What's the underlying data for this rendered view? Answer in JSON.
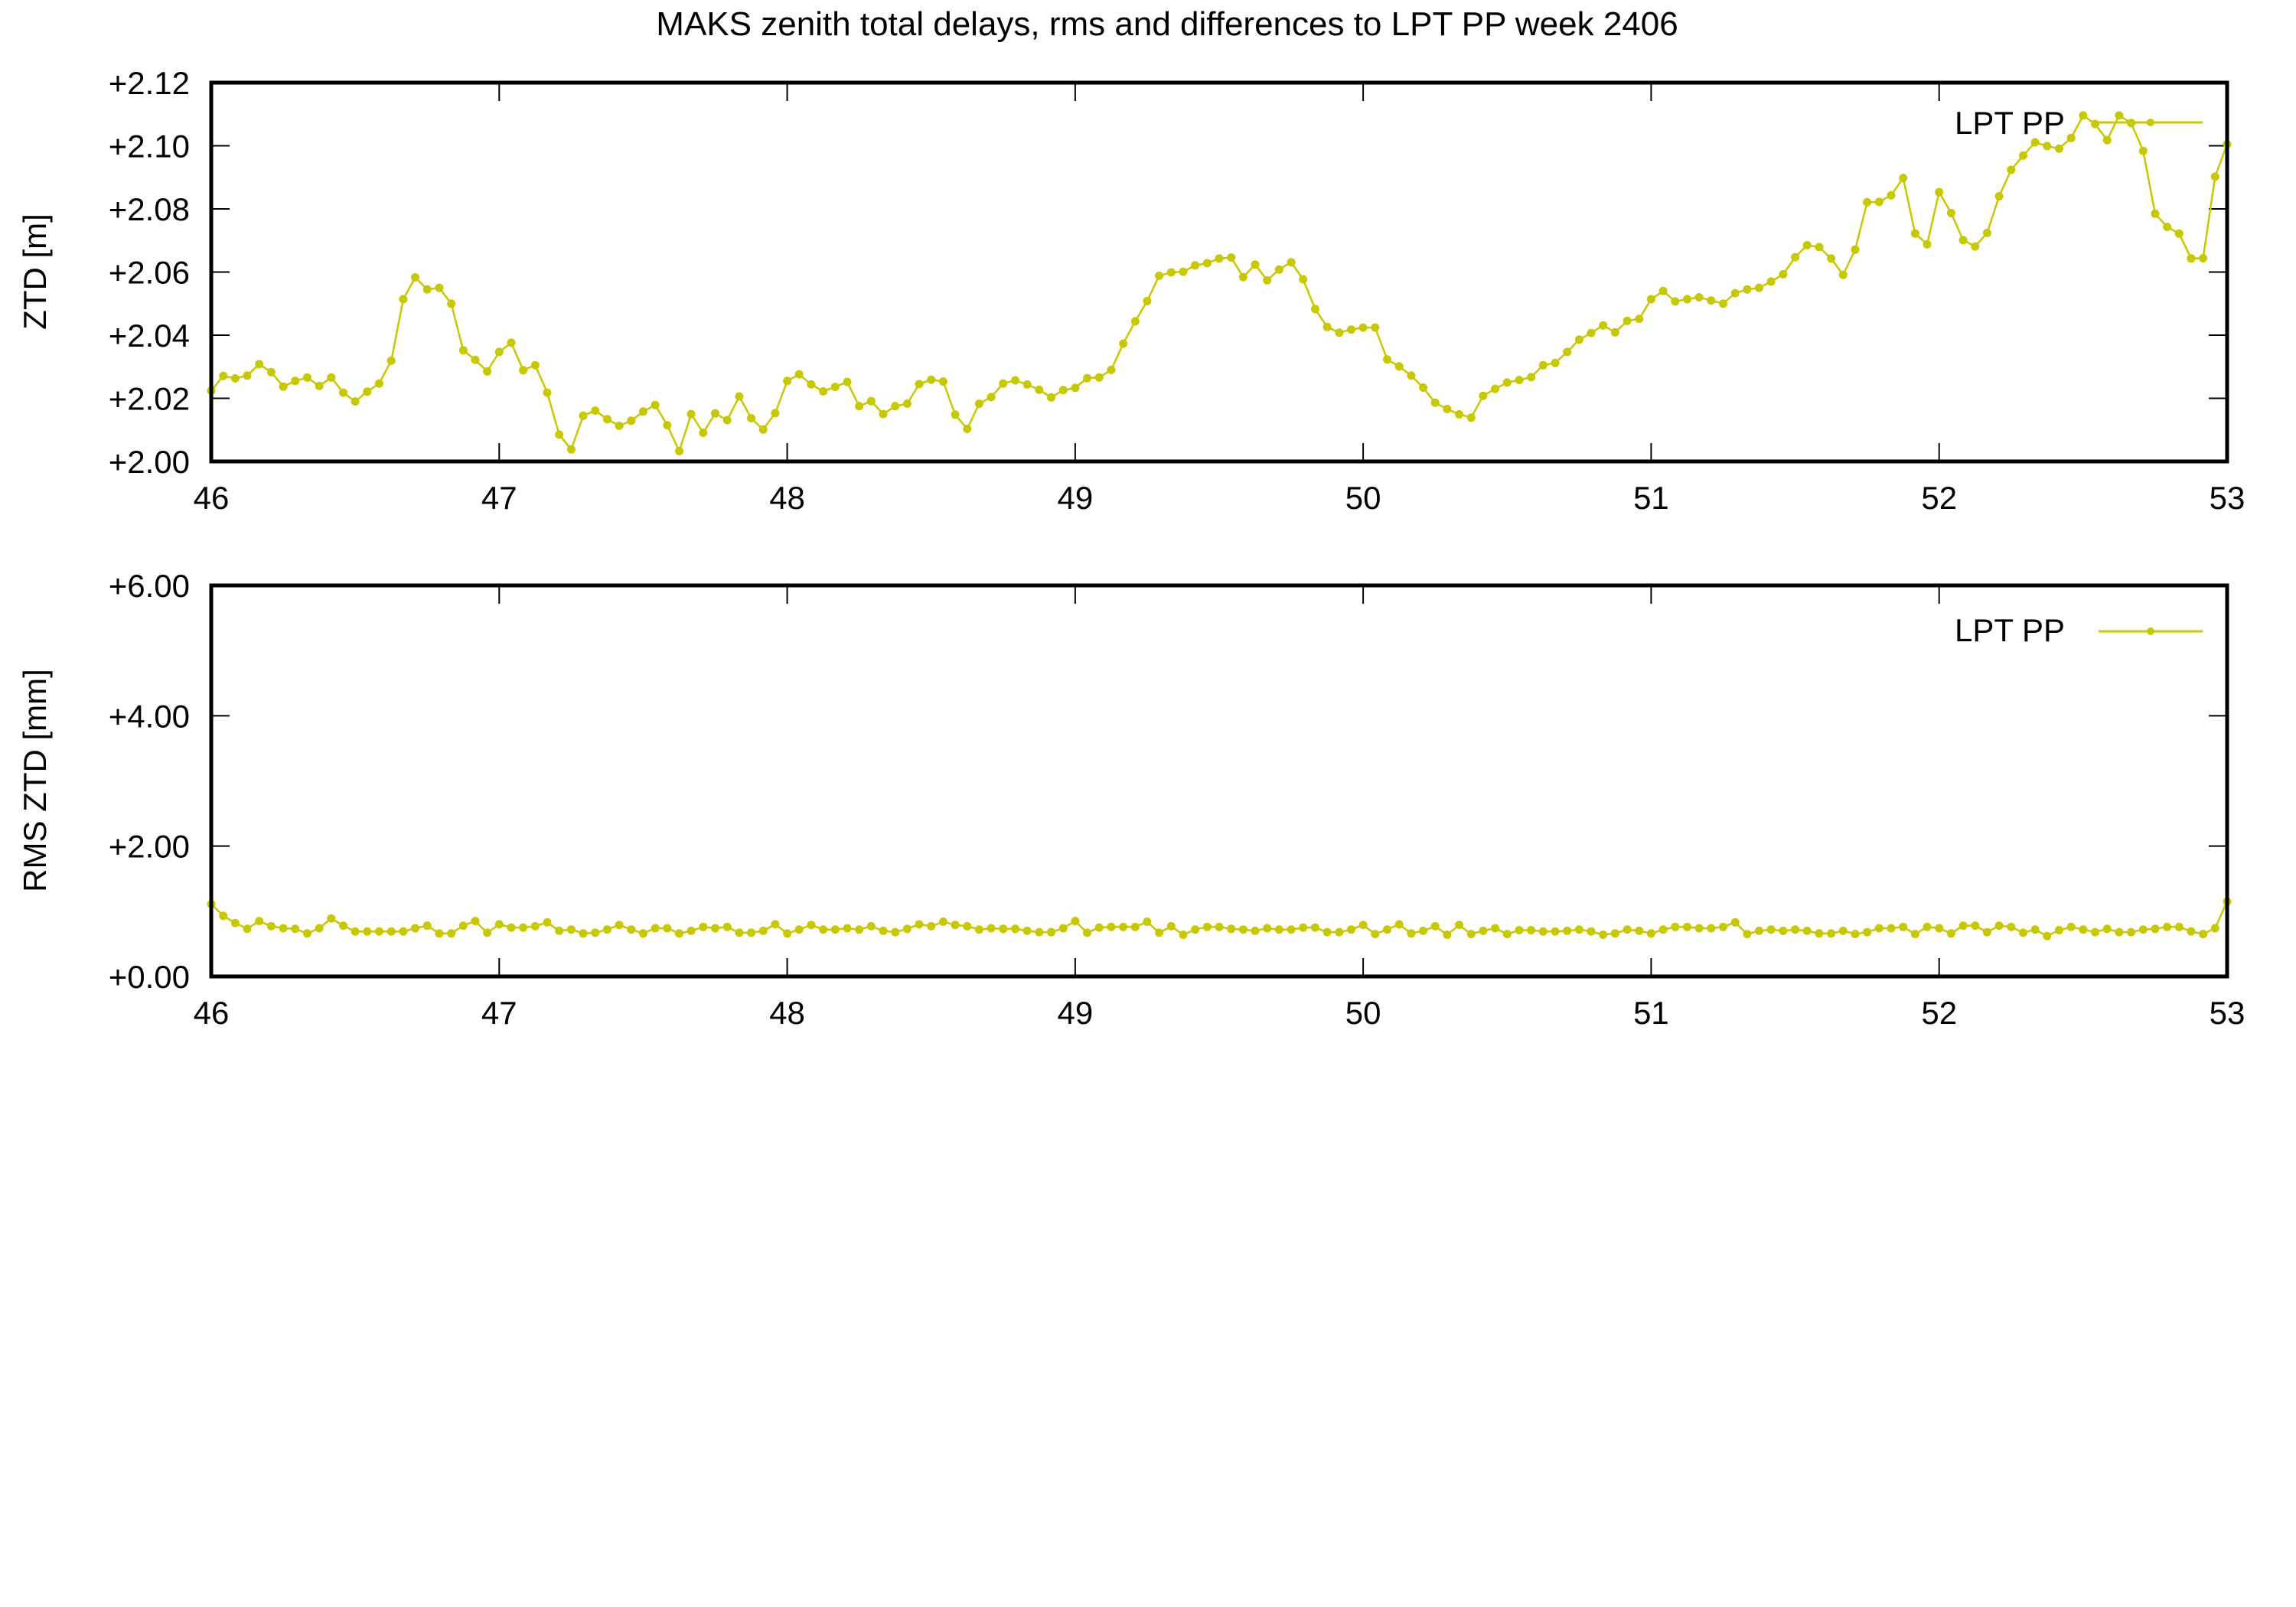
{
  "title": "MAKS zenith total delays, rms and differences to LPT PP week 2406",
  "series_color": "#c8c800",
  "panels": [
    {
      "ylabel": "ZTD [m]",
      "legend": "LPT PP",
      "yticks": [
        "+2.00",
        "+2.02",
        "+2.04",
        "+2.06",
        "+2.08",
        "+2.10",
        "+2.12"
      ],
      "xticks": [
        "46",
        "47",
        "48",
        "49",
        "50",
        "51",
        "52",
        "53"
      ]
    },
    {
      "ylabel": "RMS ZTD [mm]",
      "legend": "LPT PP",
      "yticks": [
        "+0.00",
        "+2.00",
        "+4.00",
        "+6.00"
      ],
      "xticks": [
        "46",
        "47",
        "48",
        "49",
        "50",
        "51",
        "52",
        "53"
      ]
    }
  ],
  "chart_data": [
    {
      "type": "line",
      "title": "MAKS zenith total delays, rms and differences to LPT PP week 2406",
      "xlabel": "",
      "ylabel": "ZTD [m]",
      "xlim": [
        46,
        53
      ],
      "ylim": [
        2.0,
        2.12
      ],
      "x_step": 0.041667,
      "grid": false,
      "legend_position": "top-right",
      "series": [
        {
          "name": "LPT PP",
          "marker": "circle",
          "values": [
            2.0224,
            2.0271,
            2.0263,
            2.0272,
            2.0308,
            2.0283,
            2.0237,
            2.0255,
            2.0266,
            2.0239,
            2.0266,
            2.0218,
            2.019,
            2.0221,
            2.0247,
            2.0319,
            2.0514,
            2.0583,
            2.0545,
            2.055,
            2.05,
            2.0352,
            2.0322,
            2.0285,
            2.0347,
            2.0376,
            2.0289,
            2.0305,
            2.0218,
            2.0085,
            2.0038,
            2.0145,
            2.0161,
            2.0134,
            2.0113,
            2.0129,
            2.0158,
            2.0179,
            2.0115,
            2.0033,
            2.015,
            2.0091,
            2.0152,
            2.0131,
            2.0206,
            2.0137,
            2.0101,
            2.0153,
            2.0255,
            2.0276,
            2.0244,
            2.0222,
            2.0236,
            2.0252,
            2.0175,
            2.0191,
            2.015,
            2.0175,
            2.0183,
            2.0245,
            2.0259,
            2.0253,
            2.0148,
            2.0103,
            2.0183,
            2.0204,
            2.0247,
            2.0257,
            2.0244,
            2.0227,
            2.0203,
            2.0226,
            2.0233,
            2.0264,
            2.0266,
            2.029,
            2.0373,
            2.0444,
            2.0508,
            2.0588,
            2.0599,
            2.0601,
            2.0621,
            2.0628,
            2.0643,
            2.0646,
            2.0584,
            2.0624,
            2.0574,
            2.0608,
            2.0631,
            2.0577,
            2.0483,
            2.0426,
            2.0408,
            2.0418,
            2.0424,
            2.0424,
            2.0323,
            2.0301,
            2.0272,
            2.0234,
            2.0186,
            2.0166,
            2.0149,
            2.0139,
            2.0208,
            2.023,
            2.025,
            2.0258,
            2.0267,
            2.0305,
            2.0312,
            2.0347,
            2.0386,
            2.0407,
            2.0431,
            2.0409,
            2.0445,
            2.0452,
            2.0514,
            2.054,
            2.0507,
            2.0514,
            2.052,
            2.051,
            2.05,
            2.0533,
            2.0545,
            2.055,
            2.057,
            2.0593,
            2.0647,
            2.0685,
            2.0679,
            2.0643,
            2.0591,
            2.0671,
            2.0821,
            2.0822,
            2.0843,
            2.0898,
            2.0722,
            2.0688,
            2.0853,
            2.0787,
            2.0701,
            2.0681,
            2.0724,
            2.084,
            2.0924,
            2.0969,
            2.1011,
            2.0999,
            2.0991,
            2.1025,
            2.1096,
            2.1069,
            2.1018,
            2.1096,
            2.1072,
            2.0984,
            2.0785,
            2.0743,
            2.0722,
            2.0643,
            2.0644,
            2.0902,
            2.1005
          ]
        }
      ]
    },
    {
      "type": "line",
      "title": "",
      "xlabel": "",
      "ylabel": "RMS ZTD [mm]",
      "xlim": [
        46,
        53
      ],
      "ylim": [
        0,
        6
      ],
      "x_step": 0.041667,
      "grid": false,
      "legend_position": "top-right",
      "series": [
        {
          "name": "LPT PP",
          "marker": "circle",
          "values": [
            1.11,
            0.93,
            0.82,
            0.73,
            0.85,
            0.77,
            0.74,
            0.73,
            0.66,
            0.74,
            0.89,
            0.78,
            0.69,
            0.69,
            0.69,
            0.69,
            0.69,
            0.74,
            0.78,
            0.66,
            0.66,
            0.78,
            0.85,
            0.67,
            0.8,
            0.75,
            0.75,
            0.77,
            0.83,
            0.7,
            0.72,
            0.66,
            0.67,
            0.72,
            0.79,
            0.72,
            0.66,
            0.74,
            0.74,
            0.66,
            0.7,
            0.76,
            0.74,
            0.76,
            0.67,
            0.67,
            0.7,
            0.8,
            0.66,
            0.72,
            0.79,
            0.72,
            0.72,
            0.74,
            0.72,
            0.77,
            0.7,
            0.68,
            0.73,
            0.8,
            0.77,
            0.84,
            0.79,
            0.77,
            0.72,
            0.74,
            0.73,
            0.73,
            0.7,
            0.68,
            0.68,
            0.74,
            0.85,
            0.67,
            0.75,
            0.76,
            0.76,
            0.76,
            0.84,
            0.67,
            0.77,
            0.64,
            0.72,
            0.76,
            0.76,
            0.73,
            0.72,
            0.7,
            0.74,
            0.72,
            0.72,
            0.75,
            0.75,
            0.68,
            0.68,
            0.72,
            0.79,
            0.65,
            0.72,
            0.8,
            0.66,
            0.7,
            0.77,
            0.64,
            0.79,
            0.65,
            0.7,
            0.74,
            0.65,
            0.71,
            0.71,
            0.69,
            0.69,
            0.7,
            0.72,
            0.69,
            0.64,
            0.66,
            0.72,
            0.7,
            0.66,
            0.72,
            0.76,
            0.76,
            0.74,
            0.74,
            0.76,
            0.83,
            0.65,
            0.7,
            0.72,
            0.7,
            0.72,
            0.7,
            0.66,
            0.66,
            0.7,
            0.65,
            0.68,
            0.74,
            0.74,
            0.76,
            0.65,
            0.76,
            0.74,
            0.66,
            0.78,
            0.78,
            0.68,
            0.78,
            0.76,
            0.67,
            0.72,
            0.62,
            0.71,
            0.76,
            0.72,
            0.68,
            0.73,
            0.68,
            0.68,
            0.72,
            0.73,
            0.76,
            0.76,
            0.69,
            0.65,
            0.74,
            1.15
          ]
        }
      ]
    }
  ]
}
